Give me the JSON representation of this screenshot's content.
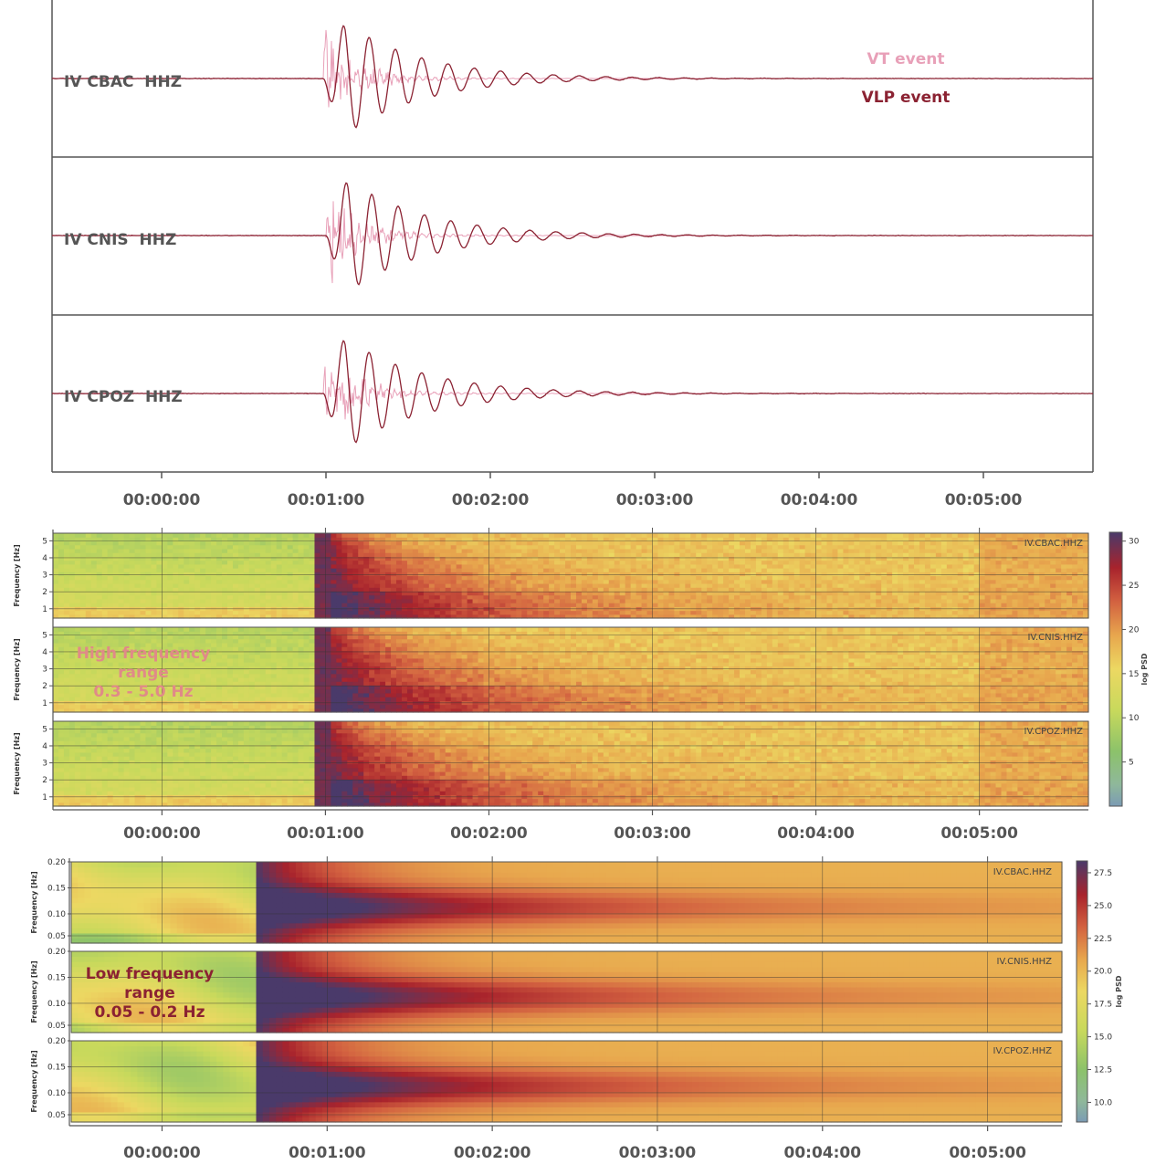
{
  "chart_data": [
    {
      "type": "line",
      "panel": "waveforms",
      "x_unit": "time (HH:MM:SS)",
      "xlim": [
        -40,
        340
      ],
      "x_ticks": [
        {
          "value": 0,
          "label": "00:00:00"
        },
        {
          "value": 60,
          "label": "00:01:00"
        },
        {
          "value": 120,
          "label": "00:02:00"
        },
        {
          "value": 180,
          "label": "00:03:00"
        },
        {
          "value": 240,
          "label": "00:04:00"
        },
        {
          "value": 300,
          "label": "00:05:00"
        }
      ],
      "traces": [
        {
          "label": "IV CBAC  HHZ",
          "vt_onset": 59,
          "vlp_onset": 59
        },
        {
          "label": "IV CNIS  HHZ",
          "vt_onset": 60,
          "vlp_onset": 60
        },
        {
          "label": "IV CPOZ  HHZ",
          "vt_onset": 59,
          "vlp_onset": 59
        }
      ],
      "series": [
        {
          "name": "VT event",
          "color": "#e8a0b8"
        },
        {
          "name": "VLP event",
          "color": "#8b2232"
        }
      ],
      "grid": false
    },
    {
      "type": "heatmap",
      "panel": "spectrogram-high",
      "xlim": [
        -40,
        340
      ],
      "x_ticks": [
        {
          "value": 0,
          "label": "00:00:00"
        },
        {
          "value": 60,
          "label": "00:01:00"
        },
        {
          "value": 120,
          "label": "00:02:00"
        },
        {
          "value": 180,
          "label": "00:03:00"
        },
        {
          "value": 240,
          "label": "00:04:00"
        },
        {
          "value": 300,
          "label": "00:05:00"
        }
      ],
      "ylabel": "Frequency [Hz]",
      "ylim": [
        0.3,
        5.0
      ],
      "y_ticks": [
        "1",
        "2",
        "3",
        "4",
        "5"
      ],
      "stations": [
        "IV.CBAC.HHZ",
        "IV.CNIS.HHZ",
        "IV.CPOZ.HHZ"
      ],
      "event_onset": 56,
      "annotation": [
        "High frequency",
        "range",
        "0.3 - 5.0 Hz"
      ],
      "annotation_color": "#e08a88",
      "colorbar": {
        "label": "log PSD",
        "min": 0,
        "max": 31,
        "ticks": [
          "30",
          "25",
          "20",
          "15",
          "10",
          "5"
        ],
        "tick_values": [
          30,
          25,
          20,
          15,
          10,
          5
        ]
      },
      "grid": true
    },
    {
      "type": "heatmap",
      "panel": "spectrogram-low",
      "xlim": [
        -33,
        327
      ],
      "x_ticks": [
        {
          "value": 0,
          "label": "00:00:00"
        },
        {
          "value": 60,
          "label": "00:01:00"
        },
        {
          "value": 120,
          "label": "00:02:00"
        },
        {
          "value": 180,
          "label": "00:03:00"
        },
        {
          "value": 240,
          "label": "00:04:00"
        },
        {
          "value": 300,
          "label": "00:05:00"
        }
      ],
      "ylabel": "Frequency [Hz]",
      "ylim": [
        0.035,
        0.2
      ],
      "y_ticks": [
        "0.05",
        "0.10",
        "0.15",
        "0.20"
      ],
      "stations": [
        "IV.CBAC.HHZ",
        "IV.CNIS.HHZ",
        "IV.CPOZ.HHZ"
      ],
      "event_onset": 35,
      "annotation": [
        "Low frequency",
        "range",
        "0.05 - 0.2 Hz"
      ],
      "annotation_color": "#8b2232",
      "colorbar": {
        "label": "log PSD",
        "min": 8.5,
        "max": 28.4,
        "ticks": [
          "27.5",
          "25.0",
          "22.5",
          "20.0",
          "17.5",
          "15.0",
          "12.5",
          "10.0"
        ],
        "tick_values": [
          27.5,
          25.0,
          22.5,
          20.0,
          17.5,
          15.0,
          12.5,
          10.0
        ]
      },
      "grid": true
    }
  ]
}
